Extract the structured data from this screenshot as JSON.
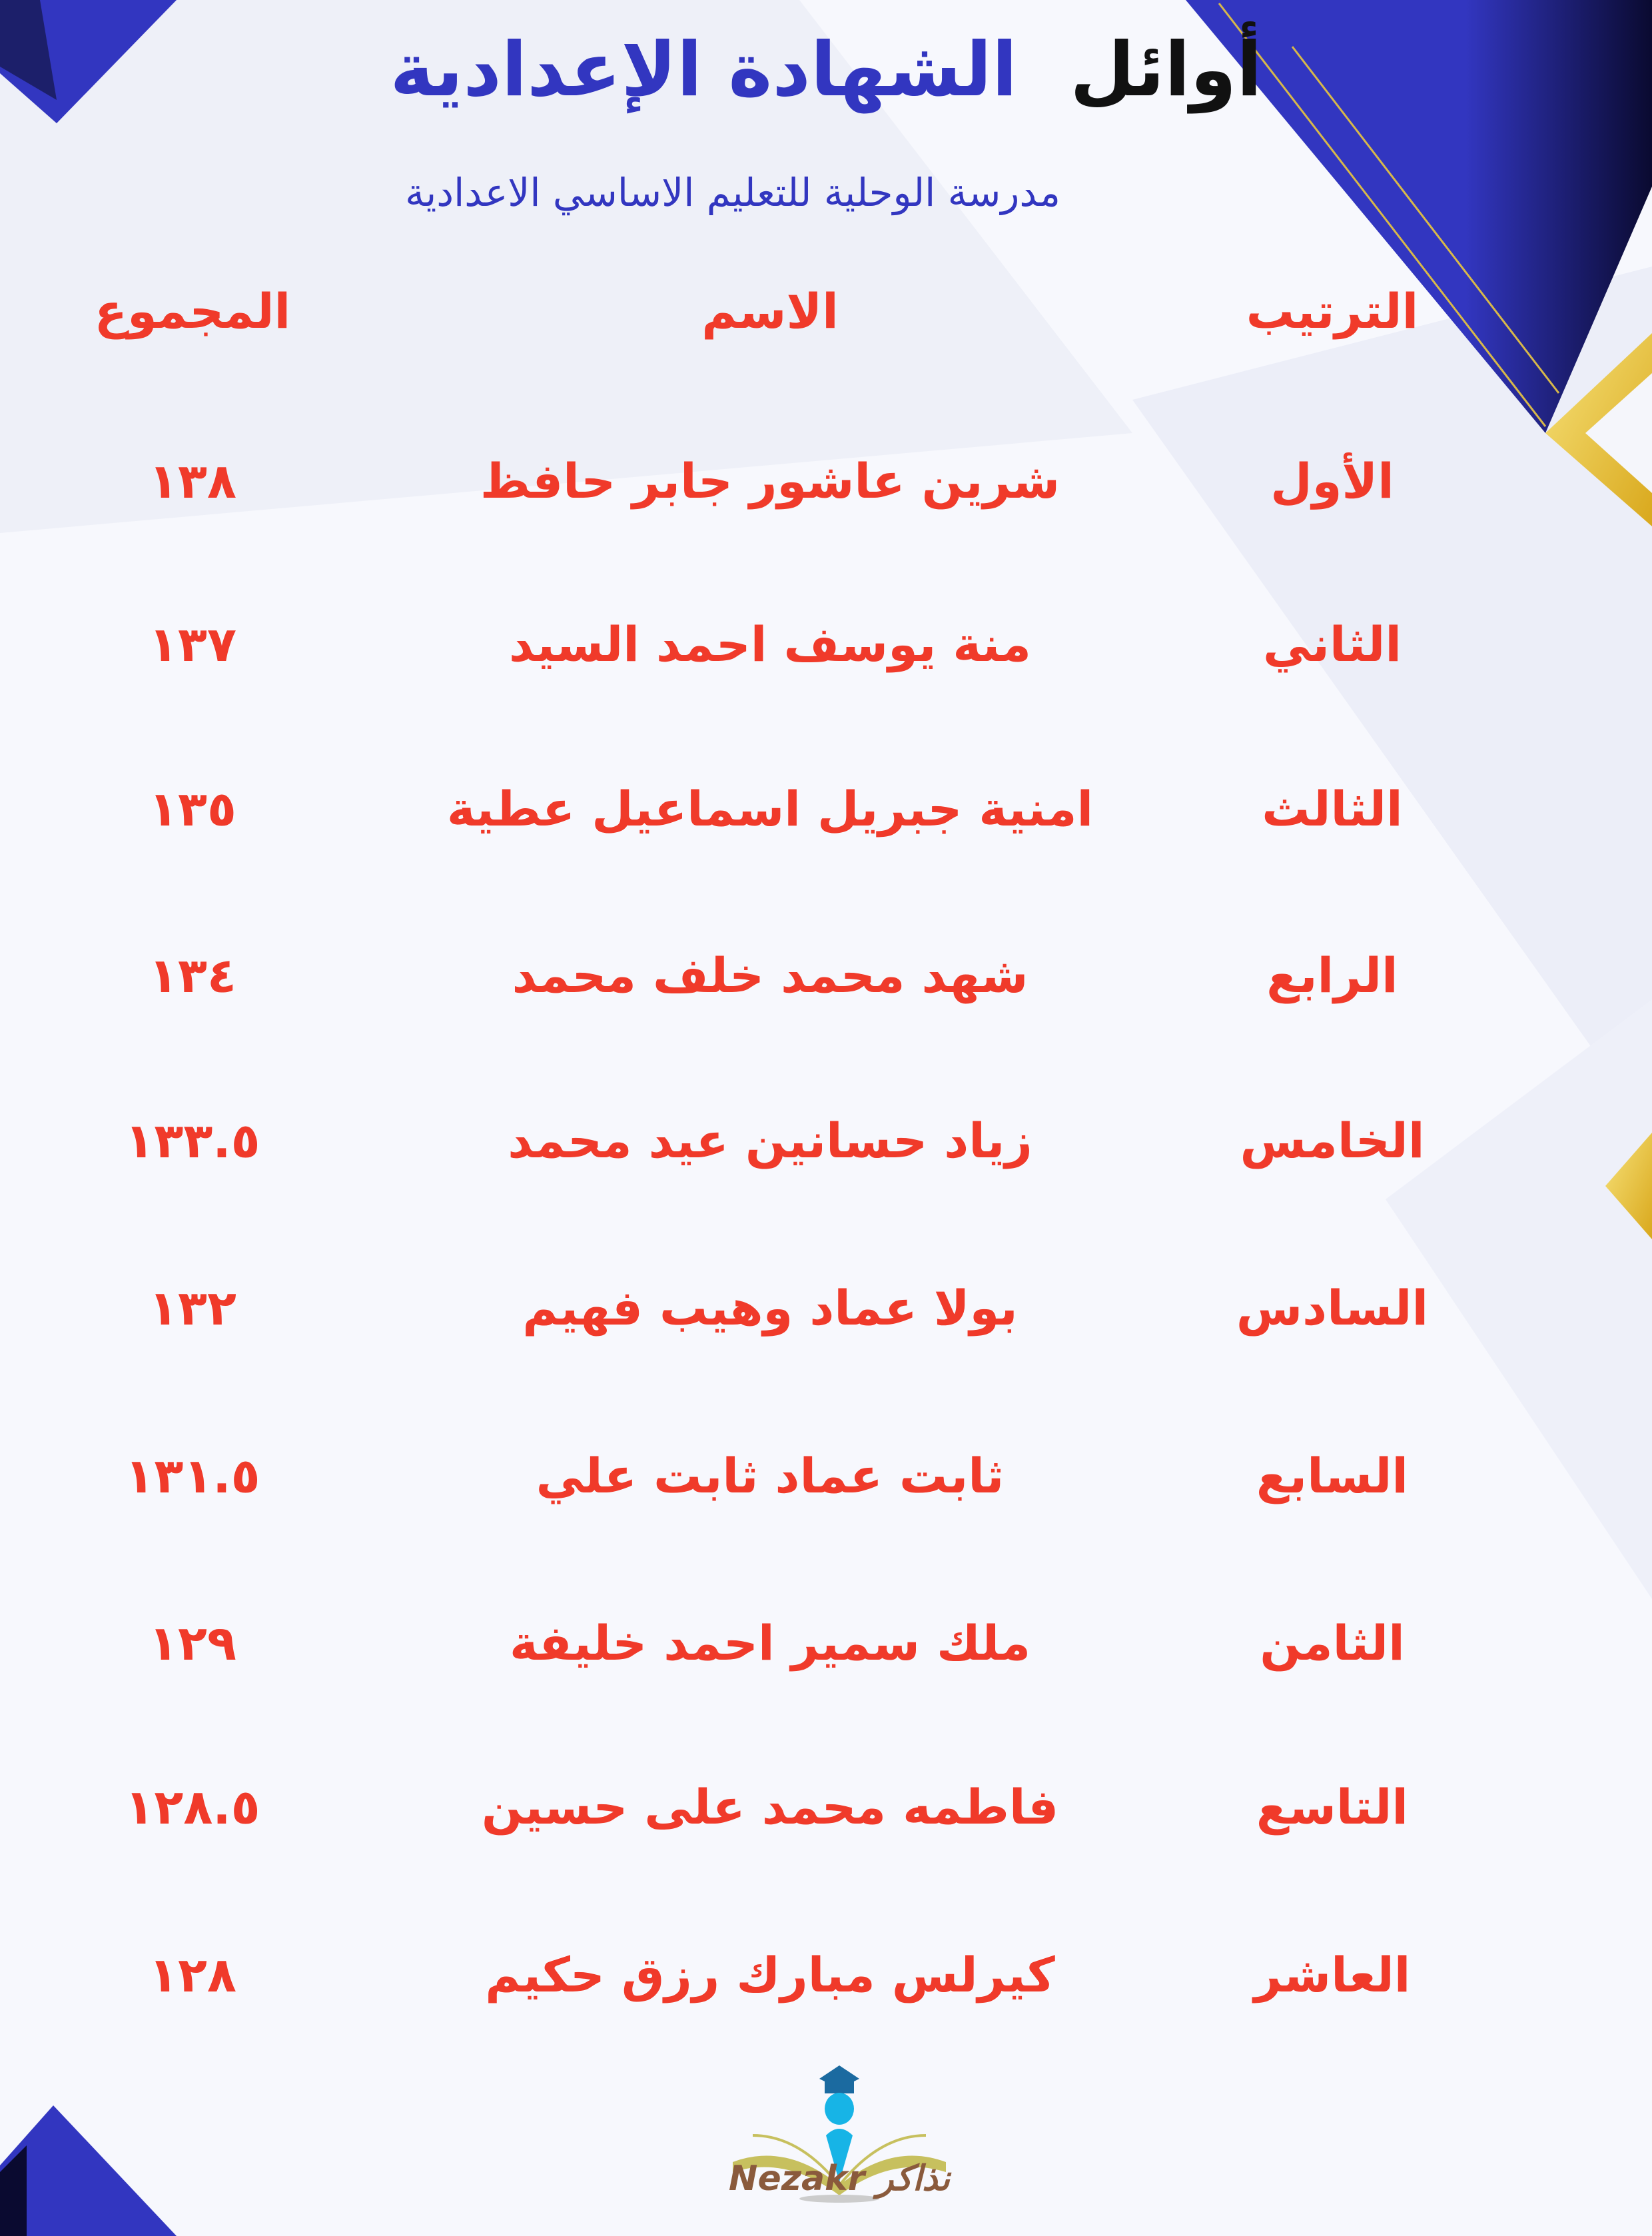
{
  "header": {
    "title_part1": "أوائل",
    "title_part2": "الشهادة الإعدادية",
    "subtitle": "مدرسة الوحلية للتعليم الاساسي الاعدادية"
  },
  "table": {
    "columns": {
      "rank": "الترتيب",
      "name": "الاسم",
      "total": "المجموع"
    },
    "rows": [
      {
        "rank": "الأول",
        "name": "شرين عاشور جابر حافظ",
        "total": "١٣٨"
      },
      {
        "rank": "الثاني",
        "name": "منة يوسف احمد السيد",
        "total": "١٣٧"
      },
      {
        "rank": "الثالث",
        "name": "امنية جبريل اسماعيل عطية",
        "total": "١٣٥"
      },
      {
        "rank": "الرابع",
        "name": "شهد محمد خلف محمد",
        "total": "١٣٤"
      },
      {
        "rank": "الخامس",
        "name": "زياد حسانين عيد محمد",
        "total": "١٣٣.٥"
      },
      {
        "rank": "السادس",
        "name": "بولا عماد وهيب فهيم",
        "total": "١٣٢"
      },
      {
        "rank": "السابع",
        "name": "ثابت عماد ثابت علي",
        "total": "١٣١.٥"
      },
      {
        "rank": "الثامن",
        "name": "ملك سمير احمد خليفة",
        "total": "١٢٩"
      },
      {
        "rank": "التاسع",
        "name": "فاطمه محمد على حسين",
        "total": "١٢٨.٥"
      },
      {
        "rank": "العاشر",
        "name": "كيرلس مبارك رزق حكيم",
        "total": "١٢٨"
      }
    ]
  },
  "logo": {
    "text": "Nezakr نذاكر"
  },
  "colors": {
    "accent_blue": "#3236c0",
    "text_red": "#f03a2a",
    "gold": "#e8c23a"
  }
}
